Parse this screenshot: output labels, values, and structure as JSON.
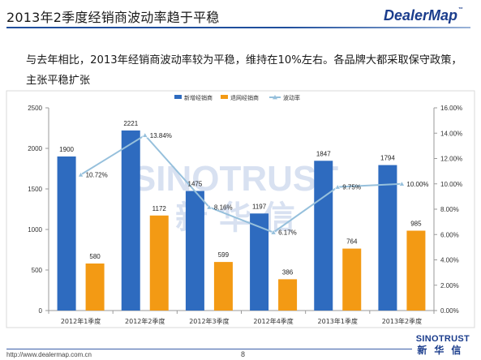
{
  "slide": {
    "title": "2013年2季度经销商波动率趋于平稳",
    "logo": "DealerMap",
    "logo_tm": "™",
    "intro": "与去年相比，2013年经销商波动率较为平稳，维持在10%左右。各品牌大都采取保守政策，主张平稳扩张",
    "footer_url": "http://www.dealermap.com.cn",
    "page_number": "8",
    "footer_logo_en": "SINOTRUST",
    "footer_logo_cn": "新华信",
    "watermark_en": "SINOTRUST",
    "watermark_cn": "新 华 信"
  },
  "chart_data": {
    "type": "bar",
    "categories": [
      "2012年1季度",
      "2012年2季度",
      "2012年3季度",
      "2012年4季度",
      "2013年1季度",
      "2013年2季度"
    ],
    "series": [
      {
        "name": "新增经销商",
        "kind": "bar",
        "axis": "left",
        "color": "#2e6bbf",
        "values": [
          1900,
          2221,
          1475,
          1197,
          1847,
          1794
        ],
        "labels": [
          "1900",
          "2221",
          "1475",
          "1197",
          "1847",
          "1794"
        ]
      },
      {
        "name": "退网经销商",
        "kind": "bar",
        "axis": "left",
        "color": "#f39a14",
        "values": [
          580,
          1172,
          599,
          386,
          764,
          985
        ],
        "labels": [
          "580",
          "1172",
          "599",
          "386",
          "764",
          "985"
        ]
      },
      {
        "name": "波动率",
        "kind": "line",
        "axis": "right",
        "color": "#96c0dc",
        "values": [
          10.72,
          13.84,
          8.16,
          6.17,
          9.75,
          10.0
        ],
        "labels": [
          "10.72%",
          "13.84%",
          "8.16%",
          "6.17%",
          "9.75%",
          "10.00%"
        ]
      }
    ],
    "y_left": {
      "min": 0,
      "max": 2500,
      "ticks": [
        "0",
        "500",
        "1000",
        "1500",
        "2000",
        "2500"
      ],
      "values": [
        0,
        500,
        1000,
        1500,
        2000,
        2500
      ]
    },
    "y_right": {
      "min": 0,
      "max": 16,
      "ticks": [
        "0.00%",
        "2.00%",
        "4.00%",
        "6.00%",
        "8.00%",
        "10.00%",
        "12.00%",
        "14.00%",
        "16.00%"
      ],
      "values": [
        0,
        2,
        4,
        6,
        8,
        10,
        12,
        14,
        16
      ]
    },
    "grid": false,
    "legend_position": "top"
  }
}
